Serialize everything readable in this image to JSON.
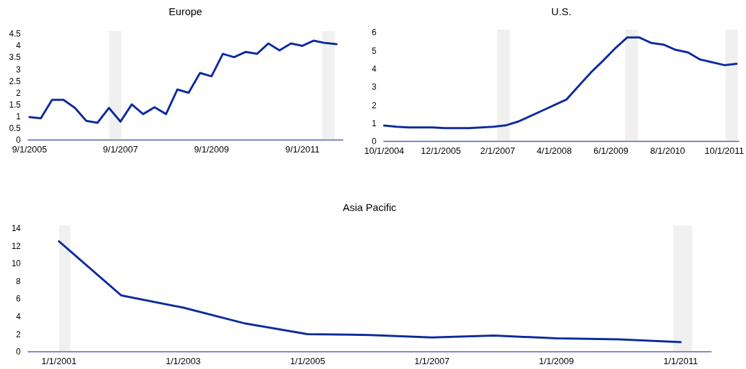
{
  "chart_data": [
    {
      "type": "line",
      "title": "Europe",
      "x": [
        "2005-09-01",
        "2005-12-01",
        "2006-03-01",
        "2006-06-01",
        "2006-09-01",
        "2006-12-01",
        "2007-03-01",
        "2007-06-01",
        "2007-09-01",
        "2007-12-01",
        "2008-03-01",
        "2008-06-01",
        "2008-09-01",
        "2008-12-01",
        "2009-03-01",
        "2009-06-01",
        "2009-09-01",
        "2009-12-01",
        "2010-03-01",
        "2010-06-01",
        "2010-09-01",
        "2010-12-01",
        "2011-03-01",
        "2011-06-01",
        "2011-09-01",
        "2011-12-01",
        "2012-03-01",
        "2012-06-01"
      ],
      "series": [
        {
          "color": "#0b2a9e",
          "values": [
            0.97,
            0.92,
            1.7,
            1.7,
            1.36,
            0.81,
            0.73,
            1.36,
            0.78,
            1.51,
            1.1,
            1.39,
            1.1,
            2.14,
            2.0,
            2.84,
            2.7,
            3.65,
            3.51,
            3.73,
            3.65,
            4.09,
            3.8,
            4.09,
            3.99,
            4.21,
            4.11,
            4.06
          ]
        }
      ],
      "xlim": [
        "2005-08-17",
        "2012-07-25"
      ],
      "xticks": [
        {
          "value": "2005-09-01",
          "label": "9/1/2005"
        },
        {
          "value": "2007-09-01",
          "label": "9/1/2007"
        },
        {
          "value": "2009-09-01",
          "label": "9/1/2009"
        },
        {
          "value": "2011-09-01",
          "label": "9/1/2011"
        }
      ],
      "ylim": [
        0,
        4.5
      ],
      "yticks": [
        0,
        0.5,
        1,
        1.5,
        2,
        2.5,
        3,
        3.5,
        4,
        4.5
      ],
      "bands": [
        {
          "axis": "x",
          "from": "2007-06-01",
          "to": "2007-09-10",
          "color": "#f0f0f0"
        },
        {
          "axis": "x",
          "from": "2012-02-06",
          "to": "2012-05-17",
          "color": "#f0f0f0"
        }
      ]
    },
    {
      "type": "line",
      "title": "U.S.",
      "x": [
        "2004-10-01",
        "2005-01-01",
        "2005-04-01",
        "2005-07-01",
        "2005-10-01",
        "2006-01-01",
        "2006-04-01",
        "2006-07-01",
        "2006-10-01",
        "2007-01-01",
        "2007-04-01",
        "2007-07-01",
        "2007-10-01",
        "2008-01-01",
        "2008-04-01",
        "2008-07-01",
        "2008-10-01",
        "2009-01-01",
        "2009-04-01",
        "2009-07-01",
        "2009-10-01",
        "2010-01-01",
        "2010-04-01",
        "2010-07-01",
        "2010-10-01",
        "2011-01-01",
        "2011-04-01",
        "2011-07-01",
        "2011-10-01",
        "2012-01-01"
      ],
      "series": [
        {
          "color": "#0b2a9e",
          "values": [
            0.87,
            0.81,
            0.77,
            0.77,
            0.77,
            0.73,
            0.73,
            0.73,
            0.77,
            0.81,
            0.88,
            1.08,
            1.38,
            1.69,
            2.0,
            2.3,
            3.05,
            3.79,
            4.43,
            5.11,
            5.72,
            5.72,
            5.42,
            5.33,
            5.04,
            4.9,
            4.51,
            4.36,
            4.2,
            4.27
          ]
        }
      ],
      "xlim": [
        "2004-09-25",
        "2012-01-20"
      ],
      "xticks": [
        {
          "value": "2004-10-01",
          "label": "10/1/2004"
        },
        {
          "value": "2005-12-01",
          "label": "12/1/2005"
        },
        {
          "value": "2007-02-01",
          "label": "2/1/2007"
        },
        {
          "value": "2008-04-01",
          "label": "4/1/2008"
        },
        {
          "value": "2009-06-01",
          "label": "6/1/2009"
        },
        {
          "value": "2010-08-01",
          "label": "8/1/2010"
        },
        {
          "value": "2011-10-01",
          "label": "10/1/2011"
        }
      ],
      "ylim": [
        0,
        6
      ],
      "yticks": [
        0,
        1,
        2,
        3,
        4,
        5,
        6
      ],
      "bands": [
        {
          "axis": "x",
          "from": "2007-01-28",
          "to": "2007-05-04",
          "color": "#f0f0f0"
        },
        {
          "axis": "x",
          "from": "2009-09-15",
          "to": "2009-12-21",
          "color": "#f0f0f0"
        },
        {
          "axis": "x",
          "from": "2011-10-10",
          "to": "2012-01-10",
          "color": "#f0f0f0"
        }
      ]
    },
    {
      "type": "line",
      "title": "Asia Pacific",
      "x": [
        "2001-01-01",
        "2002-01-01",
        "2003-01-01",
        "2004-01-01",
        "2005-01-01",
        "2006-01-01",
        "2007-01-01",
        "2008-01-01",
        "2009-01-01",
        "2010-01-01",
        "2011-01-01"
      ],
      "series": [
        {
          "color": "#0b2a9e",
          "values": [
            12.53,
            6.4,
            5.0,
            3.2,
            2.0,
            1.9,
            1.63,
            1.84,
            1.52,
            1.41,
            1.09
          ]
        }
      ],
      "xlim": [
        "2000-07-01",
        "2011-07-01"
      ],
      "xticks": [
        {
          "value": "2001-01-01",
          "label": "1/1/2001"
        },
        {
          "value": "2003-01-01",
          "label": "1/1/2003"
        },
        {
          "value": "2005-01-01",
          "label": "1/1/2005"
        },
        {
          "value": "2007-01-01",
          "label": "1/1/2007"
        },
        {
          "value": "2009-01-01",
          "label": "1/1/2009"
        },
        {
          "value": "2011-01-01",
          "label": "1/1/2011"
        }
      ],
      "ylim": [
        0,
        14
      ],
      "yticks": [
        0,
        2,
        4,
        6,
        8,
        10,
        12,
        14
      ],
      "bands": [
        {
          "axis": "x",
          "from": "2001-01-01",
          "to": "2001-03-09",
          "color": "#f0f0f0"
        },
        {
          "axis": "x",
          "from": "2010-11-20",
          "to": "2011-03-10",
          "color": "#f0f0f0"
        }
      ]
    }
  ]
}
